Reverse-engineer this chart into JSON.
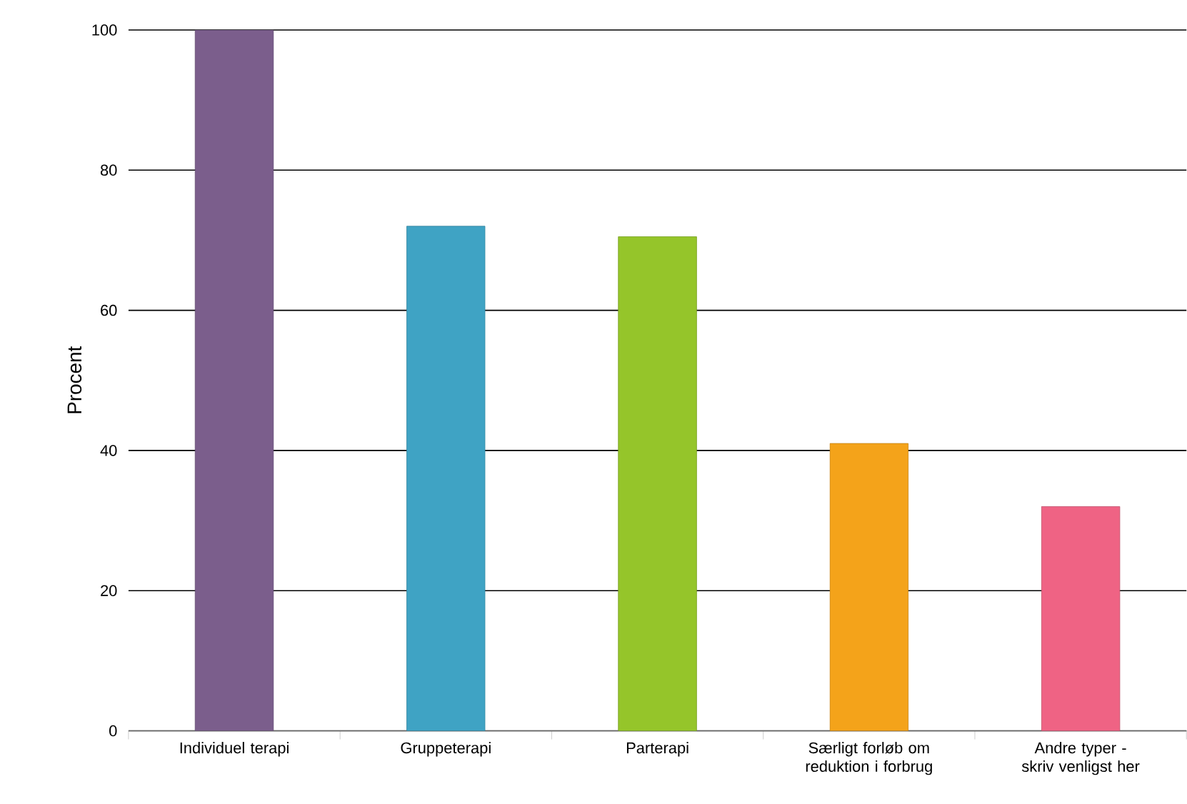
{
  "chart_data": {
    "type": "bar",
    "ylabel": "Procent",
    "categories": [
      "Individuel terapi",
      "Gruppeterapi",
      "Parterapi",
      "Særligt forløb om reduktion i forbrug",
      "Andre typer - skriv venligst her"
    ],
    "values": [
      100,
      72,
      70.5,
      41,
      32
    ],
    "colors": [
      "#7b5e8c",
      "#3fa3c4",
      "#95c52a",
      "#f4a31a",
      "#ef6384"
    ],
    "ylim": [
      0,
      100
    ],
    "yticks": [
      0,
      20,
      40,
      60,
      80,
      100
    ],
    "grid": "y"
  }
}
